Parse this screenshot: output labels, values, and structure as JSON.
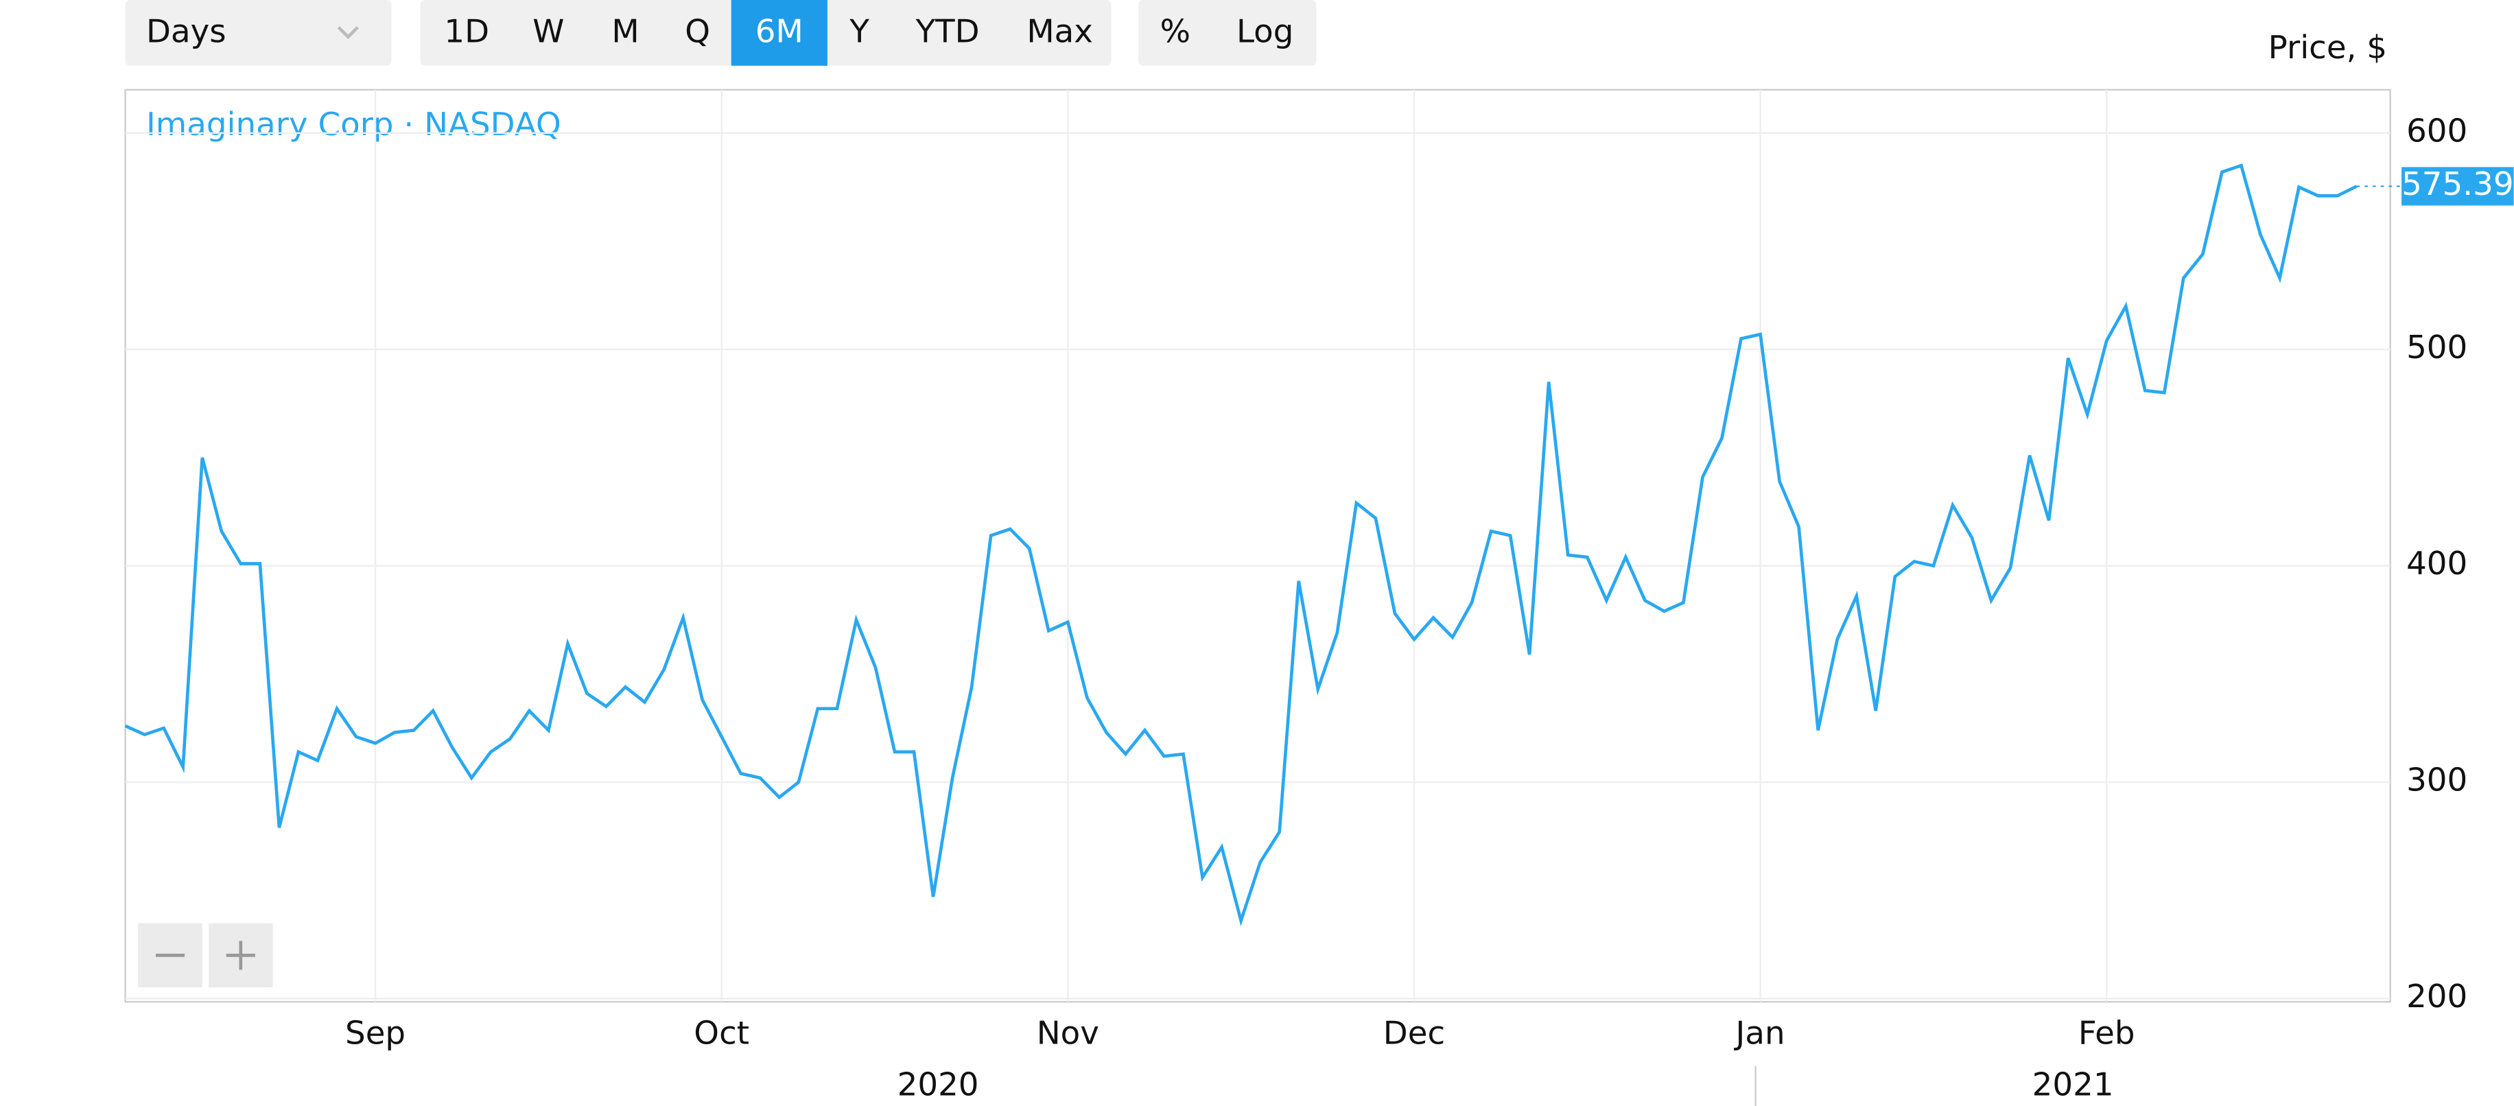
{
  "toolbar": {
    "interval": "Days",
    "ranges": [
      "1D",
      "W",
      "M",
      "Q",
      "6M",
      "Y",
      "YTD",
      "Max"
    ],
    "active_range": "6M",
    "modes": [
      "%",
      "Log"
    ]
  },
  "chart_data": {
    "type": "line",
    "y_label": "Price, $",
    "categories": [
      null,
      null,
      null,
      null,
      null,
      null,
      null,
      null,
      null,
      null,
      null,
      null,
      null,
      "Sep",
      null,
      null,
      null,
      null,
      null,
      null,
      null,
      null,
      null,
      null,
      null,
      null,
      null,
      null,
      null,
      null,
      null,
      "Oct",
      null,
      null,
      null,
      null,
      null,
      null,
      null,
      null,
      null,
      null,
      null,
      null,
      null,
      null,
      null,
      null,
      null,
      "Nov",
      null,
      null,
      null,
      null,
      null,
      null,
      null,
      null,
      null,
      null,
      null,
      null,
      null,
      null,
      null,
      null,
      null,
      "Dec",
      null,
      null,
      null,
      null,
      null,
      null,
      null,
      null,
      null,
      null,
      null,
      null,
      null,
      null,
      null,
      null,
      null,
      "Jan",
      null,
      null,
      null,
      null,
      null,
      null,
      null,
      null,
      null,
      null,
      null,
      null,
      null,
      null,
      null,
      null,
      null,
      "Feb",
      null,
      null,
      null,
      null,
      null,
      null,
      null,
      null,
      null,
      null,
      null,
      null,
      null
    ],
    "years": [
      "2020",
      "2021"
    ],
    "series": [
      {
        "name": "Imaginary Corp · NASDAQ",
        "color": "#29a8f0",
        "values": [
          326,
          322,
          325,
          307,
          450,
          416,
          401,
          401,
          279,
          314,
          310,
          334,
          321,
          318,
          323,
          324,
          333,
          316,
          302,
          314,
          320,
          333,
          324,
          364,
          341,
          335,
          344,
          337,
          352,
          376,
          338,
          321,
          304,
          302,
          293,
          300,
          334,
          334,
          375,
          353,
          314,
          314,
          247,
          302,
          344,
          414,
          417,
          408,
          370,
          374,
          339,
          323,
          313,
          324,
          312,
          313,
          256,
          270,
          236,
          263,
          277,
          393,
          343,
          369,
          429,
          422,
          378,
          366,
          376,
          367,
          383,
          416,
          414,
          359,
          485,
          405,
          404,
          384,
          404,
          384,
          379,
          383,
          441,
          459,
          505,
          507,
          439,
          418,
          324,
          366,
          386,
          333,
          395,
          402,
          400,
          428,
          413,
          384,
          399,
          451,
          421,
          496,
          470,
          504,
          520,
          481,
          480,
          533,
          544,
          582,
          585,
          553,
          533,
          575,
          571,
          571,
          575.39
        ]
      }
    ],
    "ylim": [
      198.5,
      620
    ],
    "yticks": [
      200,
      300,
      400,
      500,
      600
    ],
    "grid": true
  }
}
